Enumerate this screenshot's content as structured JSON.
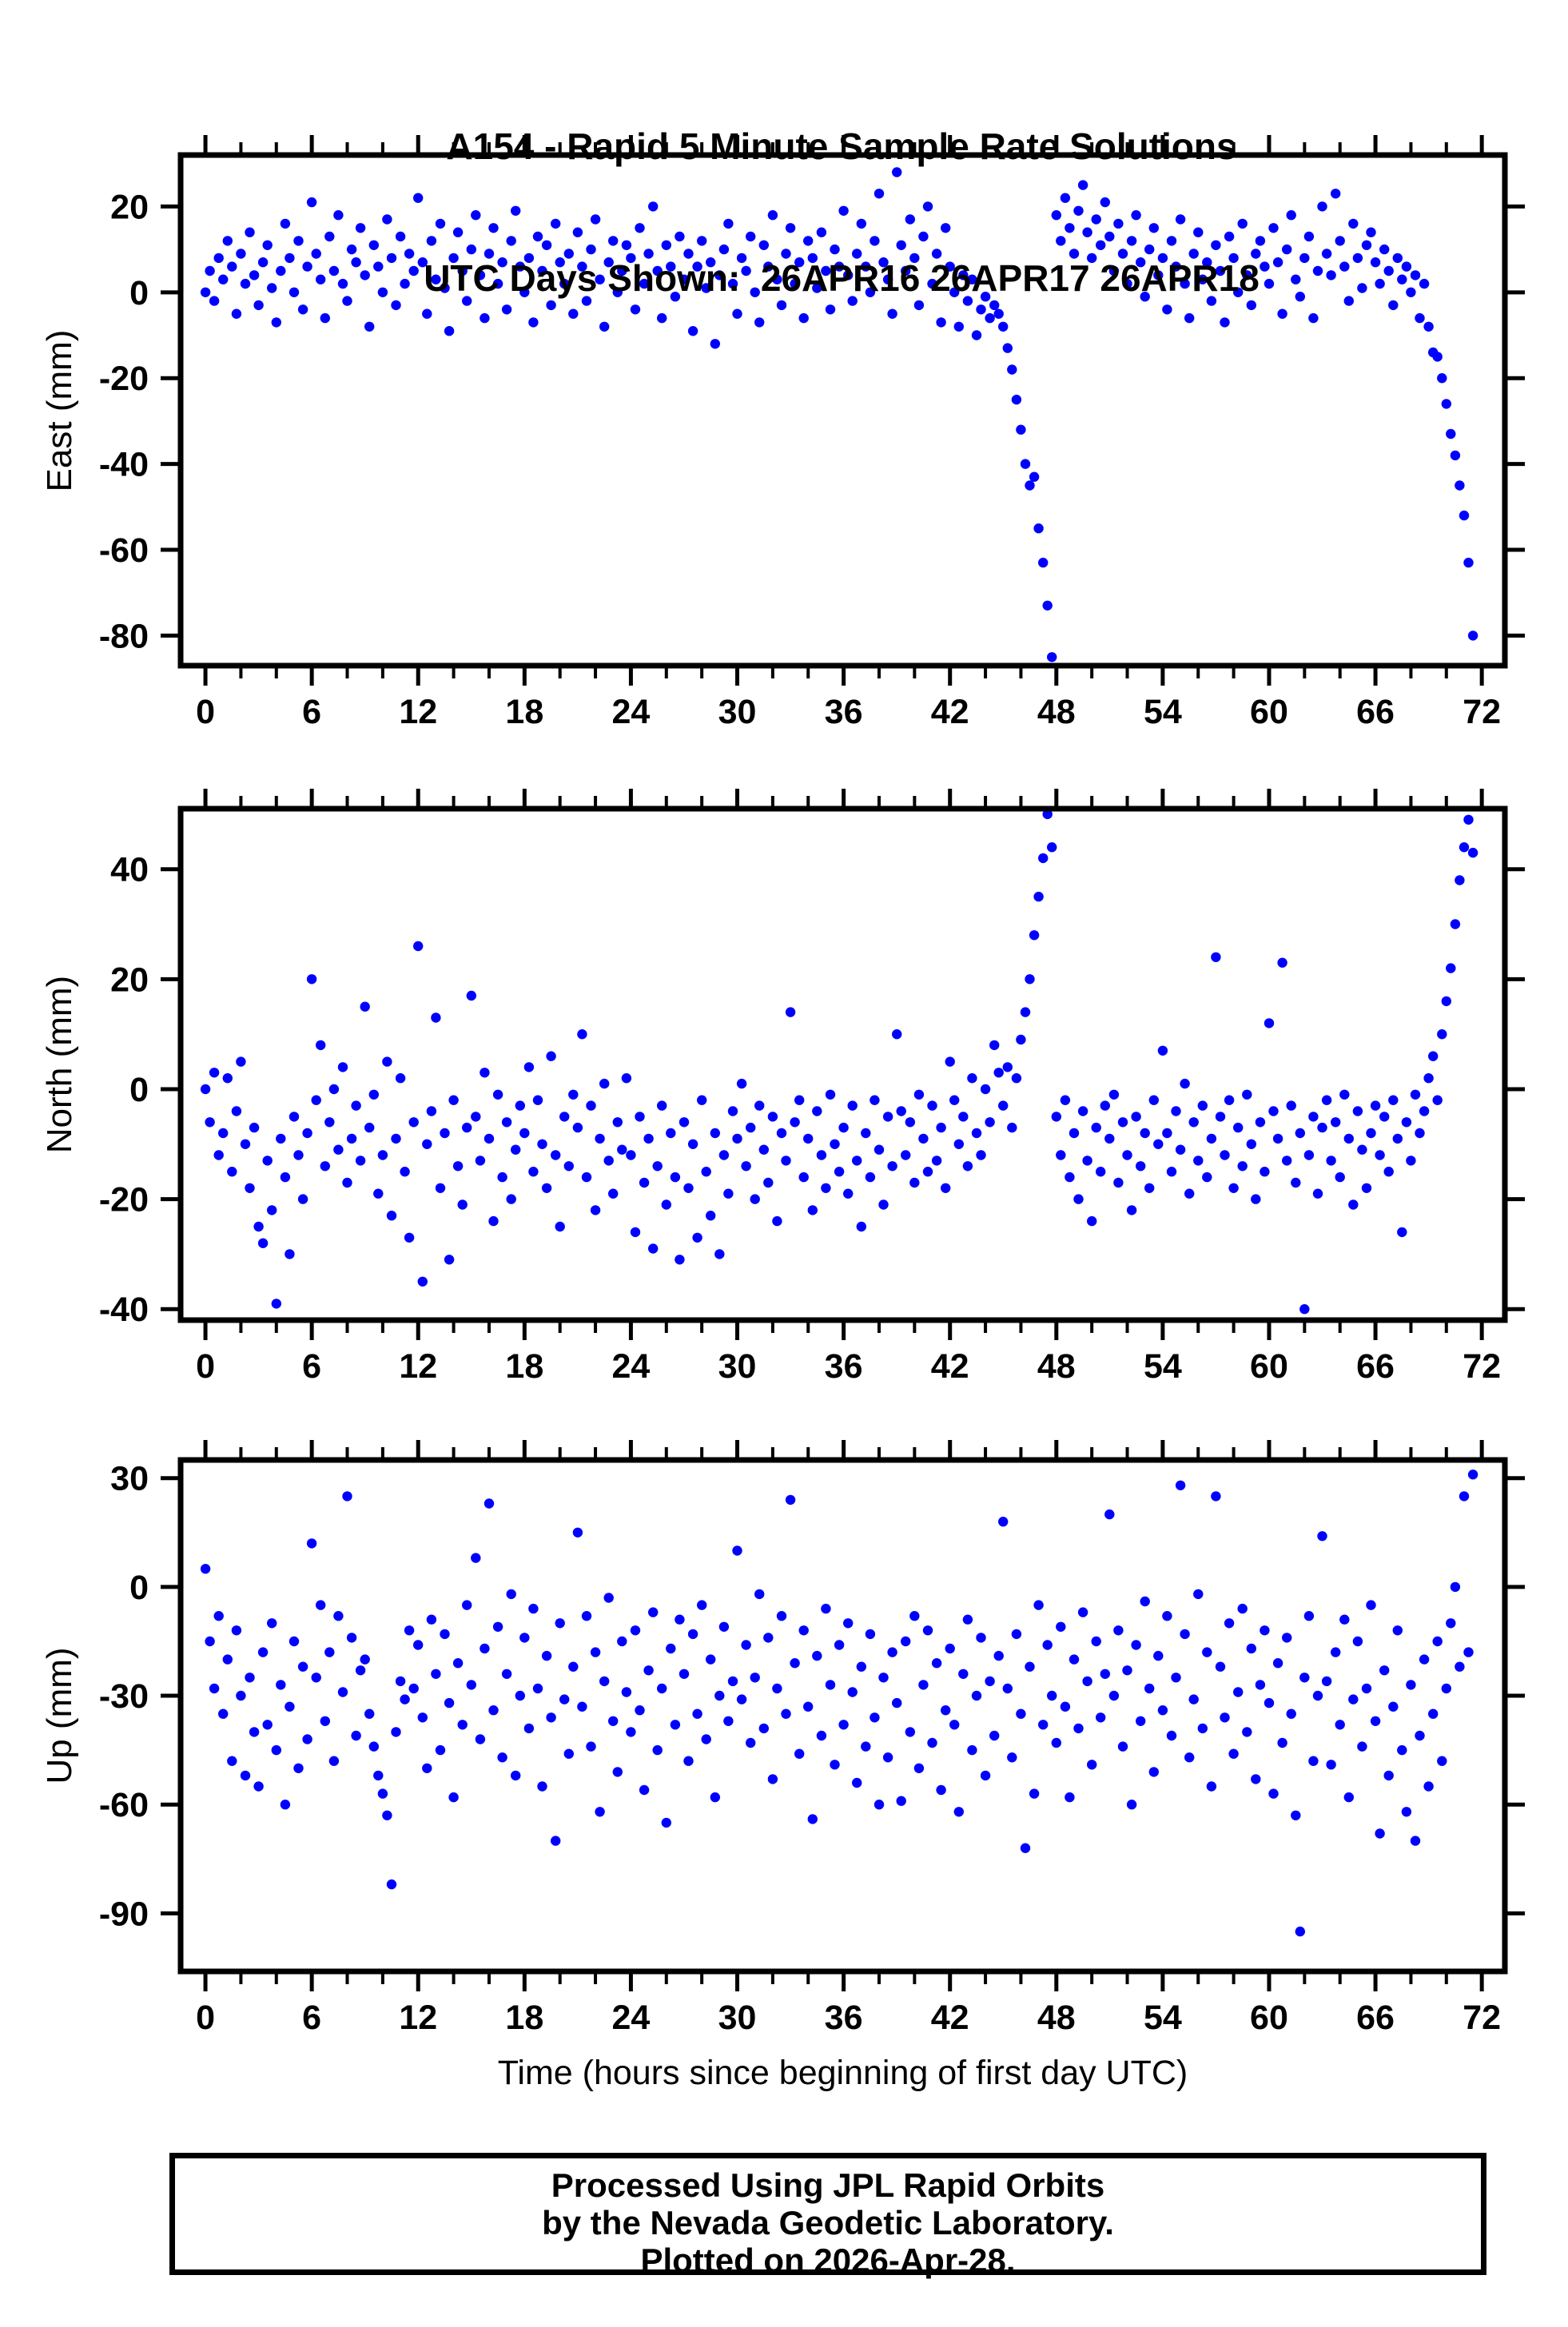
{
  "title": {
    "line1": "A154 - Rapid 5 Minute Sample Rate Solutions",
    "line2": "UTC Days Shown:  26APR16 26APR17 26APR18"
  },
  "footer": {
    "line1": "Processed Using JPL Rapid Orbits",
    "line2": "by the Nevada Geodetic Laboratory.",
    "line3": "Plotted on 2026-Apr-28."
  },
  "style": {
    "point_color": "#0000ff",
    "axis_color": "#000000",
    "background": "#ffffff"
  },
  "chart_data": {
    "type": "scatter",
    "title": "A154 - Rapid 5 Minute Sample Rate Solutions",
    "subtitle": "UTC Days Shown:  26APR16 26APR17 26APR18",
    "xlabel": "Time (hours since beginning of first day UTC)",
    "xlim": [
      -1.4,
      73.3
    ],
    "x_major_ticks": [
      0,
      6,
      12,
      18,
      24,
      30,
      36,
      42,
      48,
      54,
      60,
      66,
      72
    ],
    "x_minor_step": 2,
    "x_start": 0,
    "x_step": 0.25,
    "grid": false,
    "legend": "none",
    "marker": {
      "shape": "circle",
      "radius_px": 6.2,
      "color": "#0000ff"
    },
    "panels": [
      {
        "name": "East",
        "ylabel": "East (mm)",
        "ylim": [
          -87,
          32
        ],
        "yticks": [
          20,
          0,
          -20,
          -40,
          -60,
          -80
        ],
        "values": [
          0,
          5,
          -2,
          8,
          3,
          12,
          6,
          -5,
          9,
          2,
          14,
          4,
          -3,
          7,
          11,
          1,
          -7,
          5,
          16,
          8,
          0,
          12,
          -4,
          6,
          21,
          9,
          3,
          -6,
          13,
          5,
          18,
          2,
          -2,
          10,
          7,
          15,
          4,
          -8,
          11,
          6,
          0,
          17,
          8,
          -3,
          13,
          2,
          9,
          5,
          22,
          7,
          -5,
          12,
          3,
          16,
          1,
          -9,
          8,
          14,
          5,
          -2,
          10,
          18,
          4,
          -6,
          9,
          15,
          2,
          7,
          -4,
          12,
          19,
          6,
          0,
          8,
          -7,
          13,
          5,
          11,
          -3,
          16,
          7,
          2,
          9,
          -5,
          14,
          6,
          -2,
          10,
          17,
          3,
          -8,
          7,
          12,
          0,
          5,
          11,
          8,
          -4,
          15,
          2,
          9,
          20,
          5,
          -6,
          11,
          6,
          -1,
          13,
          3,
          9,
          -9,
          6,
          12,
          1,
          7,
          -12,
          4,
          10,
          16,
          2,
          -5,
          8,
          5,
          13,
          0,
          -7,
          11,
          6,
          18,
          3,
          -3,
          9,
          15,
          2,
          7,
          -6,
          12,
          8,
          1,
          14,
          5,
          -4,
          10,
          6,
          19,
          4,
          -2,
          9,
          16,
          6,
          0,
          12,
          23,
          7,
          3,
          -5,
          28,
          11,
          5,
          17,
          8,
          -3,
          13,
          20,
          2,
          9,
          -7,
          15,
          6,
          0,
          -8,
          4,
          -2,
          3,
          -10,
          -4,
          -1,
          -6,
          -3,
          -5,
          -8,
          -13,
          -18,
          -25,
          -32,
          -40,
          -45,
          -43,
          -55,
          -63,
          -73,
          -85,
          18,
          12,
          22,
          15,
          9,
          19,
          25,
          14,
          8,
          17,
          11,
          21,
          13,
          5,
          16,
          9,
          2,
          12,
          18,
          7,
          -1,
          10,
          15,
          4,
          8,
          -4,
          12,
          6,
          17,
          2,
          -6,
          9,
          14,
          3,
          7,
          -2,
          11,
          5,
          -7,
          13,
          8,
          0,
          16,
          4,
          -3,
          9,
          12,
          6,
          2,
          15,
          7,
          -5,
          10,
          18,
          3,
          -1,
          8,
          13,
          -6,
          5,
          20,
          9,
          4,
          23,
          12,
          6,
          -2,
          16,
          8,
          1,
          11,
          14,
          7,
          2,
          10,
          5,
          -3,
          8,
          3,
          6,
          0,
          4,
          -6,
          2,
          -8,
          -14,
          -15,
          -20,
          -26,
          -33,
          -38,
          -45,
          -52,
          -63,
          -80
        ]
      },
      {
        "name": "North",
        "ylabel": "North (mm)",
        "ylim": [
          -42,
          51
        ],
        "yticks": [
          40,
          20,
          0,
          -20,
          -40
        ],
        "values": [
          0,
          -6,
          3,
          -12,
          -8,
          2,
          -15,
          -4,
          5,
          -10,
          -18,
          -7,
          -25,
          -28,
          -13,
          -22,
          -39,
          -9,
          -16,
          -30,
          -5,
          -12,
          -20,
          -8,
          20,
          -2,
          8,
          -14,
          -6,
          0,
          -11,
          4,
          -17,
          -9,
          -3,
          -13,
          15,
          -7,
          -1,
          -19,
          -12,
          5,
          -23,
          -9,
          2,
          -15,
          -27,
          -6,
          26,
          -35,
          -10,
          -4,
          13,
          -18,
          -8,
          -31,
          -2,
          -14,
          -21,
          -7,
          17,
          -5,
          -13,
          3,
          -9,
          -24,
          -1,
          -16,
          -6,
          -20,
          -11,
          -3,
          -8,
          4,
          -15,
          -2,
          -10,
          -18,
          6,
          -12,
          -25,
          -5,
          -14,
          -1,
          -7,
          10,
          -16,
          -3,
          -22,
          -9,
          1,
          -13,
          -19,
          -6,
          -11,
          2,
          -12,
          -26,
          -5,
          -17,
          -9,
          -29,
          -14,
          -3,
          -21,
          -8,
          -16,
          -31,
          -6,
          -18,
          -10,
          -27,
          -2,
          -15,
          -23,
          -8,
          -30,
          -12,
          -19,
          -4,
          -9,
          1,
          -14,
          -7,
          -20,
          -3,
          -11,
          -17,
          -5,
          -24,
          -8,
          -13,
          14,
          -6,
          -2,
          -16,
          -9,
          -22,
          -4,
          -12,
          -18,
          -1,
          -10,
          -15,
          -7,
          -19,
          -3,
          -13,
          -25,
          -8,
          -16,
          -2,
          -11,
          -21,
          -5,
          -14,
          10,
          -4,
          -12,
          -6,
          -17,
          -1,
          -9,
          -15,
          -3,
          -13,
          -7,
          -18,
          5,
          -2,
          -10,
          -5,
          -14,
          2,
          -8,
          -12,
          0,
          -6,
          8,
          3,
          -3,
          4,
          -7,
          2,
          9,
          14,
          20,
          28,
          35,
          42,
          50,
          44,
          -5,
          -12,
          -2,
          -16,
          -8,
          -20,
          -4,
          -13,
          -24,
          -7,
          -15,
          -3,
          -9,
          -1,
          -17,
          -6,
          -12,
          -22,
          -5,
          -14,
          -8,
          -18,
          -2,
          -10,
          7,
          -8,
          -15,
          -4,
          -11,
          1,
          -19,
          -6,
          -13,
          -3,
          -16,
          -9,
          24,
          -5,
          -12,
          -2,
          -18,
          -7,
          -14,
          -1,
          -10,
          -20,
          -6,
          -15,
          12,
          -4,
          -9,
          23,
          -13,
          -3,
          -17,
          -8,
          -40,
          -12,
          -5,
          -19,
          -7,
          -2,
          -13,
          -6,
          -16,
          -1,
          -9,
          -21,
          -4,
          -11,
          -18,
          -8,
          -3,
          -12,
          -5,
          -15,
          -2,
          -9,
          -26,
          -6,
          -13,
          -1,
          -8,
          -4,
          2,
          6,
          -2,
          10,
          16,
          22,
          30,
          38,
          44,
          49,
          43
        ]
      },
      {
        "name": "Up",
        "ylabel": "Up (mm)",
        "ylim": [
          -106,
          35
        ],
        "yticks": [
          30,
          0,
          -30,
          -60,
          -90
        ],
        "values": [
          5,
          -15,
          -28,
          -8,
          -35,
          -20,
          -48,
          -12,
          -30,
          -52,
          -25,
          -40,
          -55,
          -18,
          -38,
          -10,
          -45,
          -27,
          -60,
          -33,
          -15,
          -50,
          -22,
          -42,
          12,
          -25,
          -5,
          -37,
          -18,
          -48,
          -8,
          -29,
          25,
          -14,
          -41,
          -23,
          -20,
          -35,
          -44,
          -52,
          -57,
          -63,
          -82,
          -40,
          -26,
          -31,
          -12,
          -28,
          -16,
          -36,
          -50,
          -9,
          -24,
          -45,
          -13,
          -32,
          -58,
          -21,
          -38,
          -5,
          -27,
          8,
          -42,
          -17,
          23,
          -34,
          -11,
          -47,
          -24,
          -2,
          -52,
          -30,
          -14,
          -39,
          -6,
          -28,
          -55,
          -19,
          -36,
          -70,
          -10,
          -31,
          -46,
          -22,
          15,
          -33,
          -8,
          -44,
          -18,
          -62,
          -26,
          -3,
          -37,
          -51,
          -15,
          -29,
          -40,
          -12,
          -34,
          -56,
          -23,
          -7,
          -45,
          -28,
          -65,
          -17,
          -38,
          -9,
          -24,
          -48,
          -13,
          -35,
          -5,
          -42,
          -20,
          -58,
          -30,
          -11,
          -37,
          -26,
          10,
          -31,
          -16,
          -43,
          -25,
          -2,
          -39,
          -14,
          -53,
          -28,
          -8,
          -35,
          24,
          -21,
          -46,
          -12,
          -33,
          -64,
          -19,
          -41,
          -6,
          -27,
          -49,
          -16,
          -38,
          -10,
          -29,
          -54,
          -22,
          -44,
          -13,
          -36,
          -60,
          -25,
          -47,
          -18,
          -32,
          -59,
          -15,
          -40,
          -8,
          -50,
          -27,
          -12,
          -43,
          -21,
          -56,
          -34,
          -17,
          -38,
          -62,
          -24,
          -9,
          -45,
          -30,
          -14,
          -52,
          -26,
          -41,
          -19,
          18,
          -28,
          -47,
          -13,
          -35,
          -72,
          -22,
          -57,
          -5,
          -38,
          -16,
          -30,
          -43,
          -11,
          -33,
          -58,
          -20,
          -39,
          -7,
          -26,
          -49,
          -15,
          -36,
          -24,
          20,
          -30,
          -12,
          -44,
          -23,
          -60,
          -16,
          -37,
          -4,
          -28,
          -51,
          -19,
          -34,
          -8,
          -41,
          -25,
          28,
          -13,
          -47,
          -31,
          -2,
          -39,
          -18,
          -55,
          25,
          -22,
          -36,
          -10,
          -46,
          -29,
          -6,
          -40,
          -17,
          -53,
          -27,
          -12,
          -32,
          -57,
          -21,
          -43,
          -14,
          -35,
          -63,
          -95,
          -25,
          -8,
          -48,
          -30,
          14,
          -26,
          -49,
          -18,
          -38,
          -9,
          -58,
          -31,
          -15,
          -44,
          -28,
          -5,
          -37,
          -68,
          -23,
          -52,
          -33,
          -12,
          -45,
          -62,
          -27,
          -70,
          -41,
          -20,
          -55,
          -35,
          -15,
          -48,
          -28,
          -10,
          0,
          -22,
          25,
          -18,
          31
        ]
      }
    ]
  }
}
